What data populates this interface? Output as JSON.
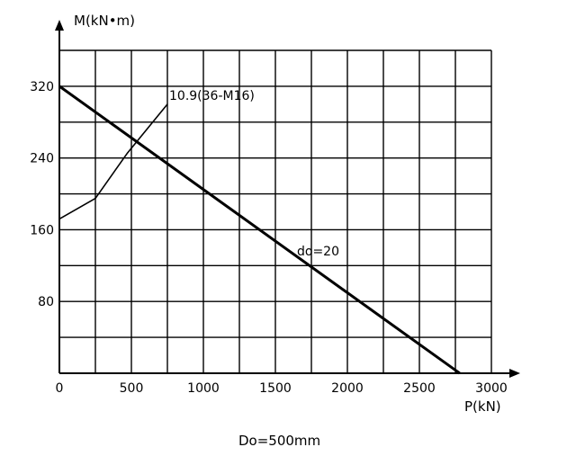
{
  "chart_data": {
    "type": "line",
    "y_axis_label": "M(kN•m)",
    "x_axis_label": "P(kN)",
    "caption": "Do=500mm",
    "x_ticks": [
      "0",
      "500",
      "1000",
      "1500",
      "2000",
      "2500",
      "3000"
    ],
    "y_ticks": [
      "80",
      "160",
      "240",
      "320"
    ],
    "xlim": [
      0,
      3000
    ],
    "ylim": [
      0,
      360
    ],
    "grid": true,
    "series": [
      {
        "name": "do=20",
        "x": [
          0,
          2780
        ],
        "y": [
          320,
          0
        ]
      },
      {
        "name": "10.9(36-M16)",
        "x": [
          0,
          250,
          470,
          750
        ],
        "y": [
          172,
          195,
          245,
          300
        ]
      }
    ],
    "line_color": "#000000"
  }
}
